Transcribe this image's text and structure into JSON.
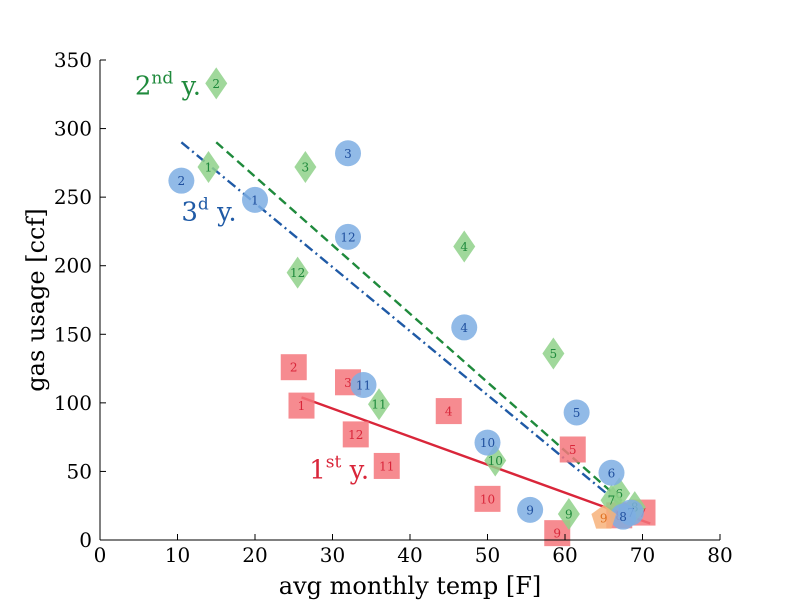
{
  "chart_data": {
    "type": "scatter",
    "xlabel": "avg monthly temp [F]",
    "ylabel": "gas usage [ccf]",
    "xlim": [
      0,
      80
    ],
    "ylim": [
      0,
      350
    ],
    "xticks": [
      0,
      10,
      20,
      30,
      40,
      50,
      60,
      70,
      80
    ],
    "yticks": [
      0,
      50,
      100,
      150,
      200,
      250,
      300,
      350
    ],
    "grid": false,
    "series": [
      {
        "name": "1st y.",
        "marker": "square",
        "color": "#f4777c",
        "text_color": "#d9263a",
        "points": [
          {
            "month": "1",
            "x": 26,
            "y": 98
          },
          {
            "month": "2",
            "x": 25,
            "y": 126
          },
          {
            "month": "3",
            "x": 32,
            "y": 115
          },
          {
            "month": "4",
            "x": 45,
            "y": 94
          },
          {
            "month": "5",
            "x": 61,
            "y": 66
          },
          {
            "month": "7",
            "x": 70,
            "y": 20
          },
          {
            "month": "8",
            "x": 67,
            "y": 18
          },
          {
            "month": "9",
            "x": 59,
            "y": 5
          },
          {
            "month": "10",
            "x": 50,
            "y": 30
          },
          {
            "month": "11",
            "x": 37,
            "y": 54
          },
          {
            "month": "12",
            "x": 33,
            "y": 77
          }
        ]
      },
      {
        "name": "2nd y.",
        "marker": "diamond",
        "color": "#8fd18a",
        "text_color": "#1f8a3c",
        "points": [
          {
            "month": "1",
            "x": 14,
            "y": 272
          },
          {
            "month": "2",
            "x": 15,
            "y": 333
          },
          {
            "month": "3",
            "x": 26.5,
            "y": 272
          },
          {
            "month": "4",
            "x": 47,
            "y": 214
          },
          {
            "month": "5",
            "x": 58.5,
            "y": 136
          },
          {
            "month": "6",
            "x": 67,
            "y": 34
          },
          {
            "month": "7",
            "x": 66,
            "y": 29
          },
          {
            "month": "8",
            "x": 69,
            "y": 24
          },
          {
            "month": "9",
            "x": 60.5,
            "y": 19
          },
          {
            "month": "10",
            "x": 51,
            "y": 58
          },
          {
            "month": "11",
            "x": 36,
            "y": 99
          },
          {
            "month": "12",
            "x": 25.5,
            "y": 195
          }
        ]
      },
      {
        "name": "3d y.",
        "marker": "circle",
        "color": "#7eaee3",
        "text_color": "#1f4f9e",
        "points": [
          {
            "month": "1",
            "x": 20,
            "y": 248
          },
          {
            "month": "2",
            "x": 10.5,
            "y": 262
          },
          {
            "month": "3",
            "x": 32,
            "y": 282
          },
          {
            "month": "4",
            "x": 47,
            "y": 155
          },
          {
            "month": "5",
            "x": 61.5,
            "y": 93
          },
          {
            "month": "6",
            "x": 66,
            "y": 49
          },
          {
            "month": "7",
            "x": 68.5,
            "y": 20
          },
          {
            "month": "8",
            "x": 67.5,
            "y": 17
          },
          {
            "month": "9",
            "x": 55.5,
            "y": 22
          },
          {
            "month": "10",
            "x": 50,
            "y": 71
          },
          {
            "month": "11",
            "x": 34,
            "y": 113
          },
          {
            "month": "12",
            "x": 32,
            "y": 221
          }
        ]
      },
      {
        "name": "",
        "marker": "pentagon",
        "color": "#f7b27a",
        "text_color": "#e07020",
        "points": [
          {
            "month": "9",
            "x": 65,
            "y": 16
          }
        ]
      }
    ],
    "fit_lines": [
      {
        "series": "1st y.",
        "style": "solid",
        "color": "#d9263a",
        "x": [
          26,
          71
        ],
        "y": [
          104,
          12
        ]
      },
      {
        "series": "2nd y.",
        "style": "dashed",
        "color": "#1f8a3c",
        "x": [
          15,
          69
        ],
        "y": [
          290,
          20
        ]
      },
      {
        "series": "3d y.",
        "style": "dashdot",
        "color": "#1f5aa6",
        "x": [
          10.5,
          69
        ],
        "y": [
          290,
          17
        ]
      }
    ],
    "annotations": [
      {
        "base": "1",
        "sup": "st",
        "rest": " y.",
        "color": "#d9263a",
        "x": 27,
        "y": 45
      },
      {
        "base": "2",
        "sup": "nd",
        "rest": " y.",
        "color": "#1f8a3c",
        "x": 4.5,
        "y": 325
      },
      {
        "base": "3",
        "sup": "d",
        "rest": " y.",
        "color": "#1f5aa6",
        "x": 10.5,
        "y": 233
      }
    ]
  }
}
